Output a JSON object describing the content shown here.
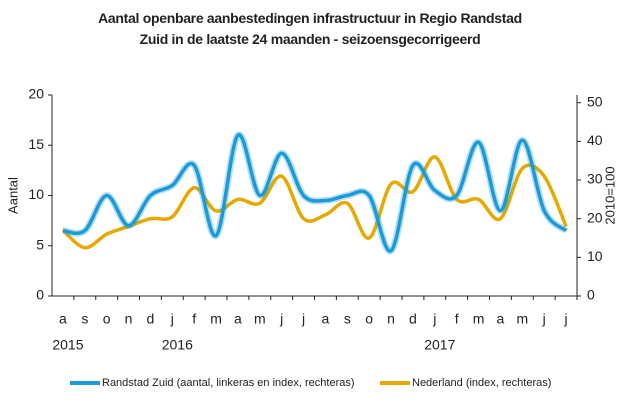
{
  "chart_data": {
    "type": "line",
    "title": "Aantal openbare aanbestedingen infrastructuur in Regio Randstad Zuid in de laatste 24 maanden - seizoensgecorrigeerd",
    "categories": [
      "a",
      "s",
      "o",
      "n",
      "d",
      "j",
      "f",
      "m",
      "a",
      "m",
      "j",
      "j",
      "a",
      "s",
      "o",
      "n",
      "d",
      "j",
      "f",
      "m",
      "a",
      "m",
      "j",
      "j"
    ],
    "category_years": [
      "2015",
      null,
      null,
      null,
      null,
      "2016",
      null,
      null,
      null,
      null,
      null,
      null,
      null,
      null,
      null,
      null,
      null,
      "2017",
      null,
      null,
      null,
      null,
      null,
      null
    ],
    "y_label": "Aantal",
    "y2_label": "2010=100",
    "ylim": [
      0,
      20
    ],
    "yticks": [
      0,
      5,
      10,
      15,
      20
    ],
    "y2lim": [
      0,
      52
    ],
    "y2ticks": [
      0,
      10,
      20,
      30,
      40,
      50
    ],
    "series": [
      {
        "name": "Randstad Zuid  (aantal, linkeras en index, rechteras)",
        "color": "#1a9ad6",
        "values": [
          6.5,
          6.5,
          10,
          7,
          10,
          11,
          13,
          6,
          16,
          10,
          14.2,
          10,
          9.5,
          10,
          10,
          4.5,
          13,
          10.5,
          10,
          15.3,
          8.5,
          15.5,
          8.5,
          6.5
        ]
      },
      {
        "name": "Nederland (index, rechteras)",
        "color": "#e8a800",
        "axis": "y2",
        "values": [
          17,
          12.5,
          16,
          18,
          20,
          20.5,
          28,
          22,
          25,
          24,
          31,
          20,
          21,
          24,
          15,
          29,
          27,
          36,
          25,
          25,
          20,
          33,
          31,
          18
        ]
      }
    ]
  }
}
